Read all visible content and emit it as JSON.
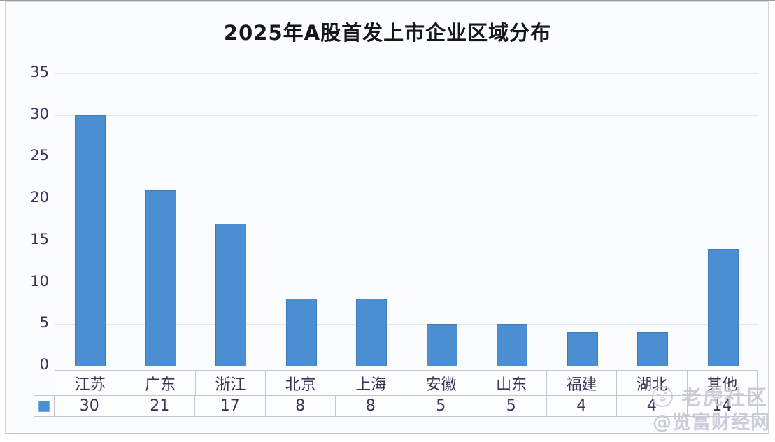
{
  "chart_data": {
    "type": "bar",
    "title": "2025年A股首发上市企业区域分布",
    "categories": [
      "江苏",
      "广东",
      "浙江",
      "北京",
      "上海",
      "安徽",
      "山东",
      "福建",
      "湖北",
      "其他"
    ],
    "values": [
      30,
      21,
      17,
      8,
      8,
      5,
      5,
      4,
      4,
      14
    ],
    "ylim": [
      0,
      35
    ],
    "yticks": [
      35,
      30,
      25,
      20,
      15,
      10,
      5,
      0
    ],
    "grid": true,
    "legend_position": "data-table-left-swatch",
    "bar_color": "#4c8ed2",
    "bar_border_color": "#3c7dc0",
    "data_table_shown": true
  },
  "watermark": {
    "community_label": "老虎社区",
    "source_label": "@览富财经网",
    "icon": "tiger-circle-icon"
  }
}
